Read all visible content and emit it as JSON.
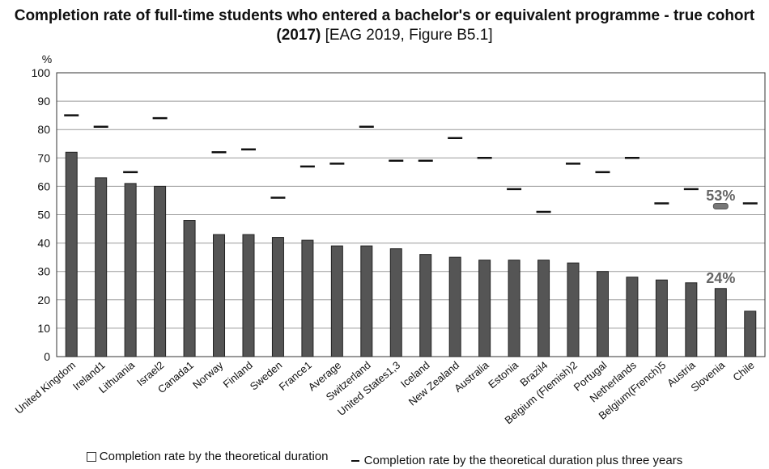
{
  "title_main": "Completion rate of full-time students who entered a bachelor's or equivalent programme - true cohort (2017)",
  "title_ref": "[EAG 2019, Figure B5.1]",
  "chart_data": {
    "type": "bar",
    "title": "Completion rate of full-time students who entered a bachelor's or equivalent programme - true cohort (2017) [EAG 2019, Figure B5.1]",
    "ylabel": "%",
    "ylim": [
      0,
      100
    ],
    "yticks": [
      0,
      10,
      20,
      30,
      40,
      50,
      60,
      70,
      80,
      90,
      100
    ],
    "grid": true,
    "legend_position": "bottom",
    "categories": [
      "United Kingdom",
      "Ireland1",
      "Lithuania",
      "Israel2",
      "Canada1",
      "Norway",
      "Finland",
      "Sweden",
      "France1",
      "Average",
      "Switzerland",
      "United States1,3",
      "Iceland",
      "New Zealand",
      "Australia",
      "Estonia",
      "Brazil4",
      "Belgium (Flemish)2",
      "Portugal",
      "Netherlands",
      "Belgium(French)5",
      "Austria",
      "Slovenia",
      "Chile"
    ],
    "series": [
      {
        "name": "Completion rate by the theoretical duration",
        "kind": "bar",
        "color": "#555555",
        "values": [
          72,
          63,
          61,
          60,
          48,
          43,
          43,
          42,
          41,
          39,
          39,
          38,
          36,
          35,
          34,
          34,
          34,
          33,
          30,
          28,
          27,
          26,
          24,
          16
        ]
      },
      {
        "name": "Completion rate by the theoretical duration plus three years",
        "kind": "marker",
        "color": "#111111",
        "values": [
          85,
          81,
          65,
          84,
          null,
          72,
          73,
          56,
          67,
          68,
          81,
          69,
          69,
          77,
          70,
          59,
          51,
          68,
          65,
          70,
          54,
          59,
          53,
          54
        ]
      }
    ],
    "annotations": [
      {
        "category": "Slovenia",
        "text": "53%",
        "value": 53
      },
      {
        "category": "Slovenia",
        "text": "24%",
        "value": 24
      }
    ],
    "colors": {
      "bar": "#555555",
      "highlight": "#777777",
      "annotation": "#666666"
    }
  }
}
